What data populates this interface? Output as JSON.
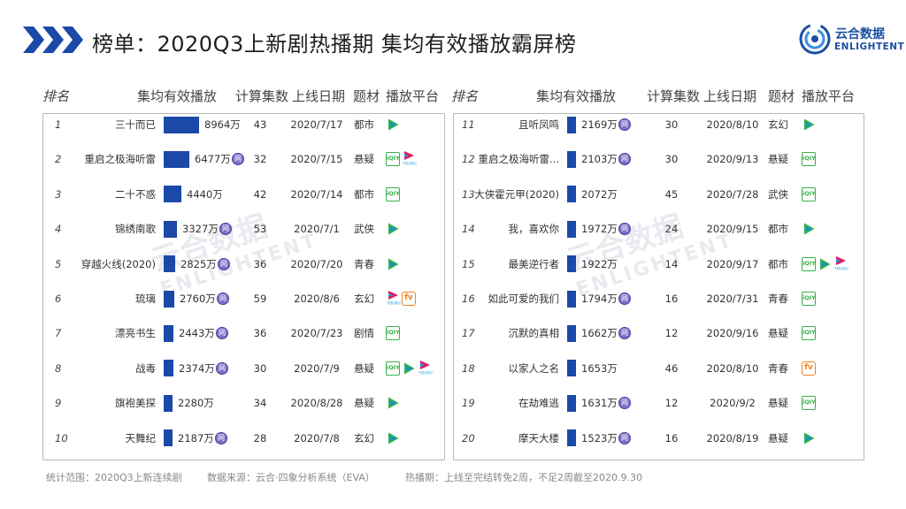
{
  "title": "榜单：2020Q3上新剧热播期 集均有效播放霸屏榜",
  "logo": {
    "cn": "云合数据",
    "en": "ENLIGHTENT",
    "icon": "enlightent-logo-icon"
  },
  "watermark": {
    "cn": "云合数据",
    "en": "ENLIGHTENT"
  },
  "columns": {
    "rank": "排名",
    "value": "集均有效播放",
    "episodes": "计算集数",
    "date": "上线日期",
    "genre": "题材",
    "platform": "播放平台"
  },
  "badge_label": "网",
  "platform_labels": {
    "iqiyi": "iQIY",
    "youku": "YOUKU",
    "mgtv": "fv"
  },
  "colors": {
    "bar": "#1b49a8",
    "tencent_green": "#2bb24c",
    "tencent_blue": "#1e88e5",
    "iqiyi": "#36b24a",
    "youku_pink": "#e8175d",
    "youku_blue": "#1aa3e8",
    "mgtv": "#f0811a",
    "web_badge": "#7b6fc6"
  },
  "chart_data": {
    "type": "table",
    "unit": "万",
    "rows": [
      {
        "rank": "1",
        "name": "三十而已",
        "value": 8964,
        "value_label": "8964万",
        "web": false,
        "episodes": "43",
        "date": "2020/7/17",
        "genre": "都市",
        "platforms": [
          "tencent"
        ]
      },
      {
        "rank": "2",
        "name": "重启之极海听雷",
        "value": 6477,
        "value_label": "6477万",
        "web": true,
        "episodes": "32",
        "date": "2020/7/15",
        "genre": "悬疑",
        "platforms": [
          "iqiyi",
          "youku"
        ]
      },
      {
        "rank": "3",
        "name": "二十不惑",
        "value": 4440,
        "value_label": "4440万",
        "web": false,
        "episodes": "42",
        "date": "2020/7/14",
        "genre": "都市",
        "platforms": [
          "iqiyi"
        ]
      },
      {
        "rank": "4",
        "name": "锦绣南歌",
        "value": 3327,
        "value_label": "3327万",
        "web": true,
        "episodes": "53",
        "date": "2020/7/1",
        "genre": "武侠",
        "platforms": [
          "tencent"
        ]
      },
      {
        "rank": "5",
        "name": "穿越火线(2020)",
        "value": 2825,
        "value_label": "2825万",
        "web": true,
        "episodes": "36",
        "date": "2020/7/20",
        "genre": "青春",
        "platforms": [
          "tencent"
        ]
      },
      {
        "rank": "6",
        "name": "琉璃",
        "value": 2760,
        "value_label": "2760万",
        "web": true,
        "episodes": "59",
        "date": "2020/8/6",
        "genre": "玄幻",
        "platforms": [
          "youku",
          "mgtv"
        ]
      },
      {
        "rank": "7",
        "name": "漂亮书生",
        "value": 2443,
        "value_label": "2443万",
        "web": true,
        "episodes": "36",
        "date": "2020/7/23",
        "genre": "剧情",
        "platforms": [
          "iqiyi"
        ]
      },
      {
        "rank": "8",
        "name": "战毒",
        "value": 2374,
        "value_label": "2374万",
        "web": true,
        "episodes": "30",
        "date": "2020/7/9",
        "genre": "悬疑",
        "platforms": [
          "iqiyi",
          "tencent",
          "youku"
        ]
      },
      {
        "rank": "9",
        "name": "旗袍美探",
        "value": 2280,
        "value_label": "2280万",
        "web": false,
        "episodes": "34",
        "date": "2020/8/28",
        "genre": "悬疑",
        "platforms": [
          "tencent"
        ]
      },
      {
        "rank": "10",
        "name": "天舞纪",
        "value": 2187,
        "value_label": "2187万",
        "web": true,
        "episodes": "28",
        "date": "2020/7/8",
        "genre": "玄幻",
        "platforms": [
          "tencent"
        ]
      },
      {
        "rank": "11",
        "name": "且听凤鸣",
        "value": 2169,
        "value_label": "2169万",
        "web": true,
        "episodes": "30",
        "date": "2020/8/10",
        "genre": "玄幻",
        "platforms": [
          "tencent"
        ]
      },
      {
        "rank": "12",
        "name": "重启之极海听雷...",
        "value": 2103,
        "value_label": "2103万",
        "web": true,
        "episodes": "30",
        "date": "2020/9/13",
        "genre": "悬疑",
        "platforms": [
          "iqiyi"
        ]
      },
      {
        "rank": "13",
        "name": "大侠霍元甲(2020)",
        "value": 2072,
        "value_label": "2072万",
        "web": false,
        "episodes": "45",
        "date": "2020/7/28",
        "genre": "武侠",
        "platforms": [
          "iqiyi"
        ]
      },
      {
        "rank": "14",
        "name": "我，喜欢你",
        "value": 1972,
        "value_label": "1972万",
        "web": true,
        "episodes": "24",
        "date": "2020/9/15",
        "genre": "都市",
        "platforms": [
          "tencent"
        ]
      },
      {
        "rank": "15",
        "name": "最美逆行者",
        "value": 1922,
        "value_label": "1922万",
        "web": false,
        "episodes": "14",
        "date": "2020/9/17",
        "genre": "都市",
        "platforms": [
          "iqiyi",
          "tencent",
          "youku"
        ]
      },
      {
        "rank": "16",
        "name": "如此可爱的我们",
        "value": 1794,
        "value_label": "1794万",
        "web": true,
        "episodes": "16",
        "date": "2020/7/31",
        "genre": "青春",
        "platforms": [
          "iqiyi"
        ]
      },
      {
        "rank": "17",
        "name": "沉默的真相",
        "value": 1662,
        "value_label": "1662万",
        "web": true,
        "episodes": "12",
        "date": "2020/9/16",
        "genre": "悬疑",
        "platforms": [
          "iqiyi"
        ]
      },
      {
        "rank": "18",
        "name": "以家人之名",
        "value": 1653,
        "value_label": "1653万",
        "web": false,
        "episodes": "46",
        "date": "2020/8/10",
        "genre": "青春",
        "platforms": [
          "mgtv"
        ]
      },
      {
        "rank": "19",
        "name": "在劫难逃",
        "value": 1631,
        "value_label": "1631万",
        "web": true,
        "episodes": "12",
        "date": "2020/9/2",
        "genre": "悬疑",
        "platforms": [
          "iqiyi"
        ]
      },
      {
        "rank": "20",
        "name": "摩天大楼",
        "value": 1523,
        "value_label": "1523万",
        "web": true,
        "episodes": "16",
        "date": "2020/8/19",
        "genre": "悬疑",
        "platforms": [
          "tencent"
        ]
      }
    ]
  },
  "footer": {
    "scope": "统计范围：2020Q3上新连续剧",
    "source": "数据来源：云合·四象分析系统（EVA）",
    "note": "热播期：上线至完结转免2周，不足2周截至2020.9.30"
  }
}
